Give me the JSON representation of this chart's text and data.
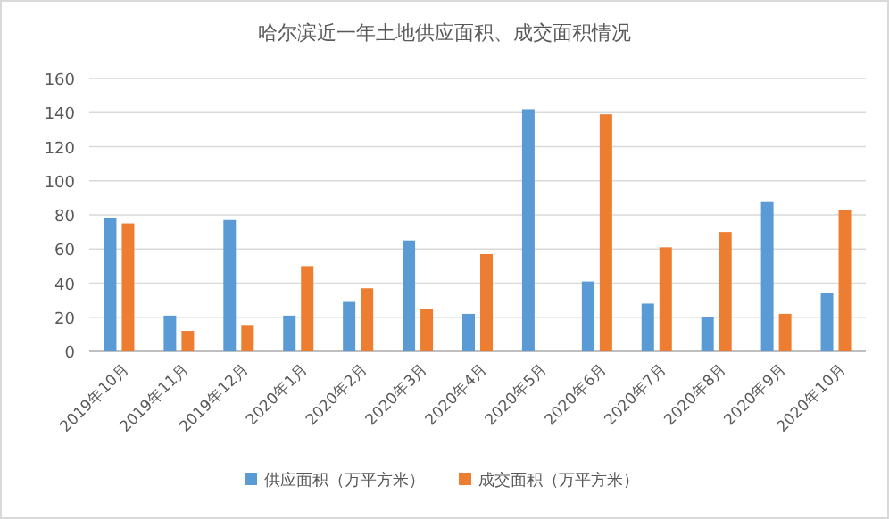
{
  "chart_data": {
    "type": "bar",
    "title": "哈尔滨近一年土地供应面积、成交面积情况",
    "categories": [
      "2019年10月",
      "2019年11月",
      "2019年12月",
      "2020年1月",
      "2020年2月",
      "2020年3月",
      "2020年4月",
      "2020年5月",
      "2020年6月",
      "2020年7月",
      "2020年8月",
      "2020年9月",
      "2020年10月"
    ],
    "series": [
      {
        "name": "供应面积（万平方米）",
        "color": "#5b9bd5",
        "values": [
          78,
          21,
          77,
          21,
          29,
          65,
          22,
          142,
          41,
          28,
          20,
          88,
          34
        ]
      },
      {
        "name": "成交面积（万平方米）",
        "color": "#ed7d31",
        "values": [
          75,
          12,
          15,
          50,
          37,
          25,
          57,
          0,
          139,
          61,
          70,
          22,
          83
        ]
      }
    ],
    "ylim": [
      0,
      160
    ],
    "yticks": [
      0,
      20,
      40,
      60,
      80,
      100,
      120,
      140,
      160
    ],
    "grid": "y",
    "legend": "bottom"
  }
}
